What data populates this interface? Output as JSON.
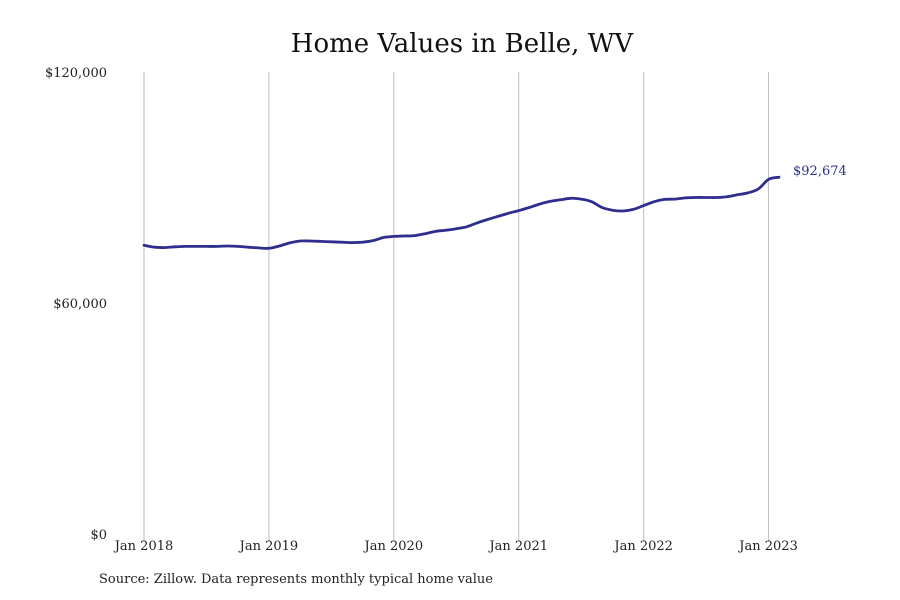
{
  "chart_data": {
    "type": "line",
    "title": "Home Values in Belle, WV",
    "xlabel": "",
    "ylabel": "",
    "x_tick_labels": [
      "Jan 2018",
      "Jan 2019",
      "Jan 2020",
      "Jan 2021",
      "Jan 2022",
      "Jan 2023"
    ],
    "y_tick_labels": [
      "$0",
      "$60,000",
      "$120,000"
    ],
    "ylim": [
      0,
      120000
    ],
    "xlim": [
      "2018-01",
      "2023-02"
    ],
    "grid": "vertical lines at each January",
    "legend": "none",
    "series": [
      {
        "color": "#2e2e8f",
        "x": [
          "2018-01",
          "2018-02",
          "2018-03",
          "2018-04",
          "2018-05",
          "2018-06",
          "2018-07",
          "2018-08",
          "2018-09",
          "2018-10",
          "2018-11",
          "2018-12",
          "2019-01",
          "2019-02",
          "2019-03",
          "2019-04",
          "2019-05",
          "2019-06",
          "2019-07",
          "2019-08",
          "2019-09",
          "2019-10",
          "2019-11",
          "2019-12",
          "2020-01",
          "2020-02",
          "2020-03",
          "2020-04",
          "2020-05",
          "2020-06",
          "2020-07",
          "2020-08",
          "2020-09",
          "2020-10",
          "2020-11",
          "2020-12",
          "2021-01",
          "2021-02",
          "2021-03",
          "2021-04",
          "2021-05",
          "2021-06",
          "2021-07",
          "2021-08",
          "2021-09",
          "2021-10",
          "2021-11",
          "2021-12",
          "2022-01",
          "2022-02",
          "2022-03",
          "2022-04",
          "2022-05",
          "2022-06",
          "2022-07",
          "2022-08",
          "2022-09",
          "2022-10",
          "2022-11",
          "2022-12",
          "2023-01",
          "2023-02"
        ],
        "y": [
          75000,
          74500,
          74400,
          74600,
          74700,
          74700,
          74700,
          74700,
          74800,
          74700,
          74500,
          74300,
          74200,
          74800,
          75600,
          76100,
          76100,
          76000,
          75900,
          75800,
          75700,
          75800,
          76200,
          77000,
          77300,
          77400,
          77500,
          78000,
          78600,
          78900,
          79300,
          79800,
          80800,
          81700,
          82500,
          83300,
          84000,
          84800,
          85700,
          86400,
          86800,
          87200,
          87000,
          86300,
          84800,
          84100,
          83900,
          84300,
          85300,
          86300,
          86900,
          87000,
          87300,
          87400,
          87400,
          87400,
          87600,
          88100,
          88600,
          89600,
          92100,
          92674
        ]
      }
    ],
    "annotations": [
      {
        "text": "$92,674",
        "target": "last point"
      }
    ],
    "source_note": "Source: Zillow. Data represents monthly typical home value"
  }
}
